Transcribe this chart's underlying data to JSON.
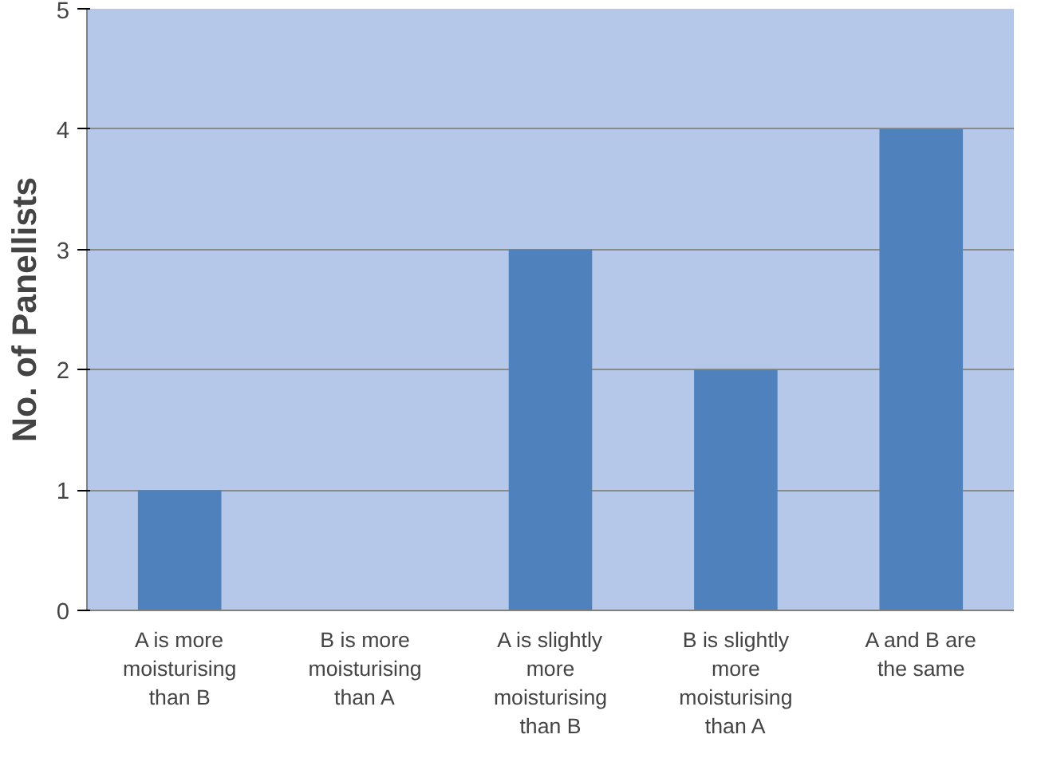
{
  "chart_data": {
    "type": "bar",
    "ylabel": "No. of Panellists",
    "categories": [
      "A is more moisturising than B",
      "B is more moisturising than A",
      "A is slightly more moisturising than B",
      "B is slightly more moisturising than A",
      "A and B are the same"
    ],
    "values": [
      1,
      0,
      3,
      2,
      4
    ],
    "color": "#4f81bd",
    "ylim": [
      0,
      5
    ],
    "yticks": [
      0,
      1,
      2,
      3,
      4,
      5
    ],
    "grid": "y"
  }
}
